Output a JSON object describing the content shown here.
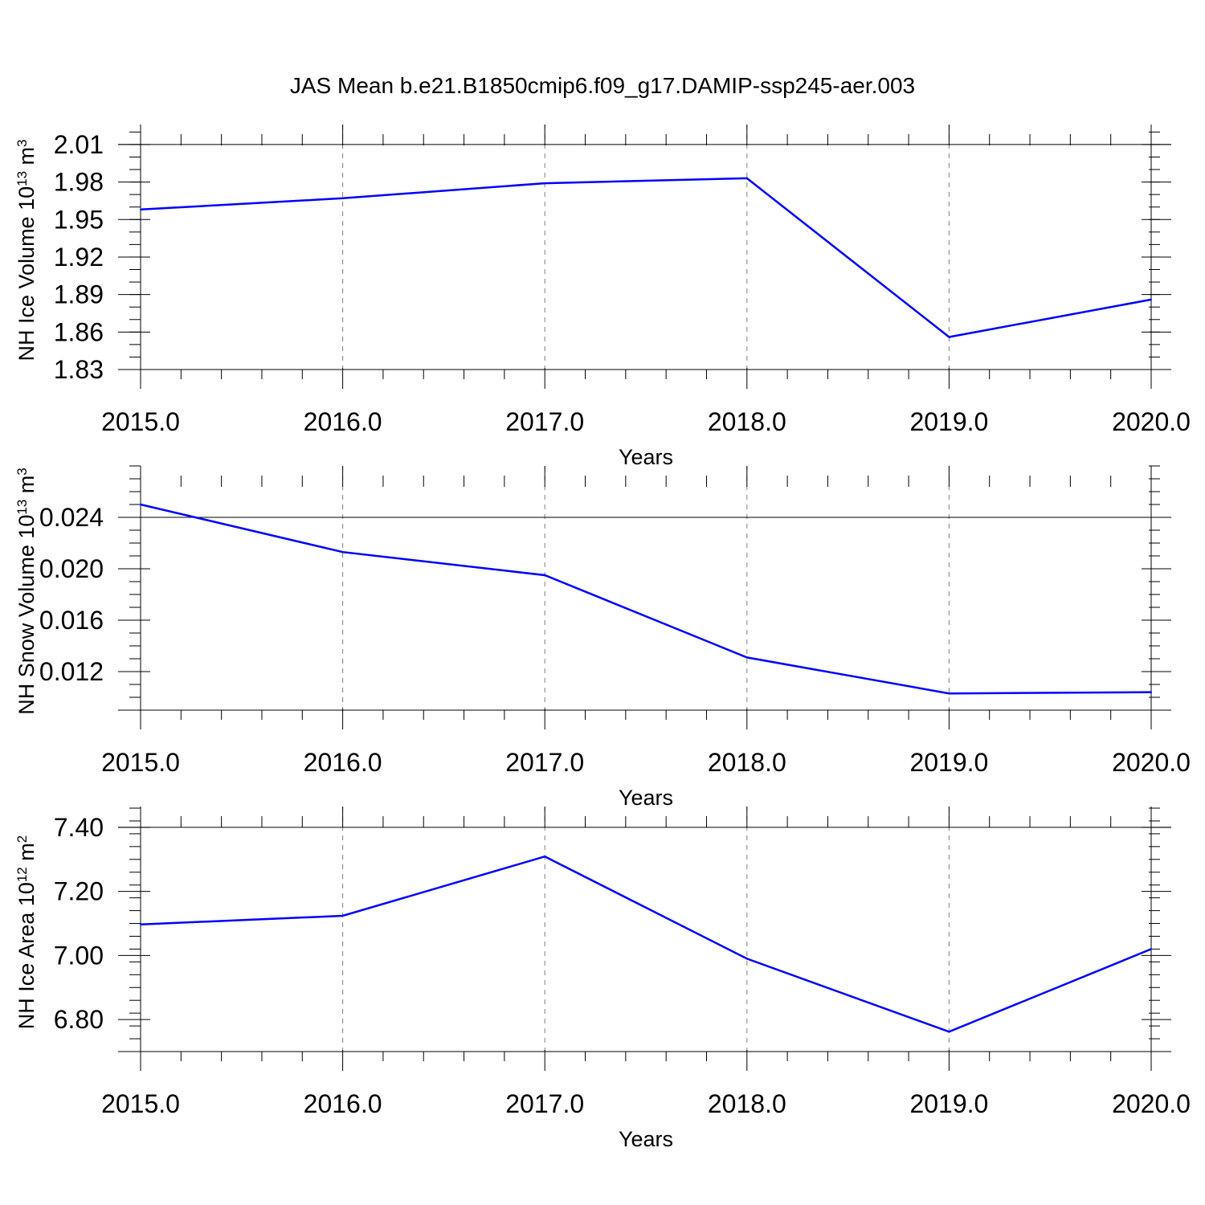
{
  "figure_title": "JAS Mean b.e21.B1850cmip6.f09_g17.DAMIP-ssp245-aer.003",
  "colors": {
    "line": "#0000ff",
    "axes": "#000000",
    "grid": "#808080",
    "background": "#ffffff"
  },
  "chart_data": [
    {
      "type": "line",
      "title": "JAS Mean b.e21.B1850cmip6.f09_g17.DAMIP-ssp245-aer.003",
      "xlabel": "Years",
      "ylabel_main": "NH Ice Volume 10",
      "ylabel_exp": "13",
      "ylabel_tail": " m",
      "ylabel_unit_exp": "3",
      "x": [
        2015,
        2016,
        2017,
        2018,
        2019,
        2020
      ],
      "x_tick_labels": [
        "2015.0",
        "2016.0",
        "2017.0",
        "2018.0",
        "2019.0",
        "2020.0"
      ],
      "xlim": [
        2014.95,
        2020.05
      ],
      "series": [
        {
          "values": [
            1.958,
            1.967,
            1.979,
            1.983,
            1.856,
            1.886
          ]
        }
      ],
      "ylim": [
        1.83,
        2.01
      ],
      "y_ticks": [
        1.83,
        1.86,
        1.89,
        1.92,
        1.95,
        1.98,
        2.01
      ],
      "y_tick_labels": [
        "1.83",
        "1.86",
        "1.89",
        "1.92",
        "1.95",
        "1.98",
        "2.01"
      ],
      "y_top": 2.026,
      "y_bottom": 1.83,
      "y_minor_step": 0.01,
      "grid": "vertical dashed at major x ticks"
    },
    {
      "type": "line",
      "xlabel": "Years",
      "ylabel_main": "NH Snow Volume 10",
      "ylabel_exp": "13",
      "ylabel_tail": " m",
      "ylabel_unit_exp": "3",
      "x": [
        2015,
        2016,
        2017,
        2018,
        2019,
        2020
      ],
      "x_tick_labels": [
        "2015.0",
        "2016.0",
        "2017.0",
        "2018.0",
        "2019.0",
        "2020.0"
      ],
      "xlim": [
        2014.95,
        2020.05
      ],
      "series": [
        {
          "values": [
            0.025,
            0.0213,
            0.0195,
            0.0131,
            0.0103,
            0.0104
          ]
        }
      ],
      "ylim": [
        0.009,
        0.027
      ],
      "y_ticks": [
        0.012,
        0.016,
        0.02,
        0.024
      ],
      "y_tick_labels": [
        "0.012",
        "0.016",
        "0.020",
        "0.024"
      ],
      "y_top": 0.028,
      "y_bottom": 0.009,
      "y_minor_step": 0.001,
      "grid": "vertical dashed at major x ticks"
    },
    {
      "type": "line",
      "xlabel": "Years",
      "ylabel_main": "NH Ice Area 10",
      "ylabel_exp": "12",
      "ylabel_tail": " m",
      "ylabel_unit_exp": "2",
      "x": [
        2015,
        2016,
        2017,
        2018,
        2019,
        2020
      ],
      "x_tick_labels": [
        "2015.0",
        "2016.0",
        "2017.0",
        "2018.0",
        "2019.0",
        "2020.0"
      ],
      "xlim": [
        2014.95,
        2020.05
      ],
      "series": [
        {
          "values": [
            7.097,
            7.124,
            7.309,
            6.99,
            6.762,
            7.02
          ]
        }
      ],
      "ylim": [
        6.7,
        7.4
      ],
      "y_ticks": [
        6.8,
        7.0,
        7.2,
        7.4
      ],
      "y_tick_labels": [
        "6.80",
        "7.00",
        "7.20",
        "7.40"
      ],
      "y_top": 7.465,
      "y_bottom": 6.7,
      "y_minor_step": 0.04,
      "grid": "vertical dashed at major x ticks"
    }
  ]
}
